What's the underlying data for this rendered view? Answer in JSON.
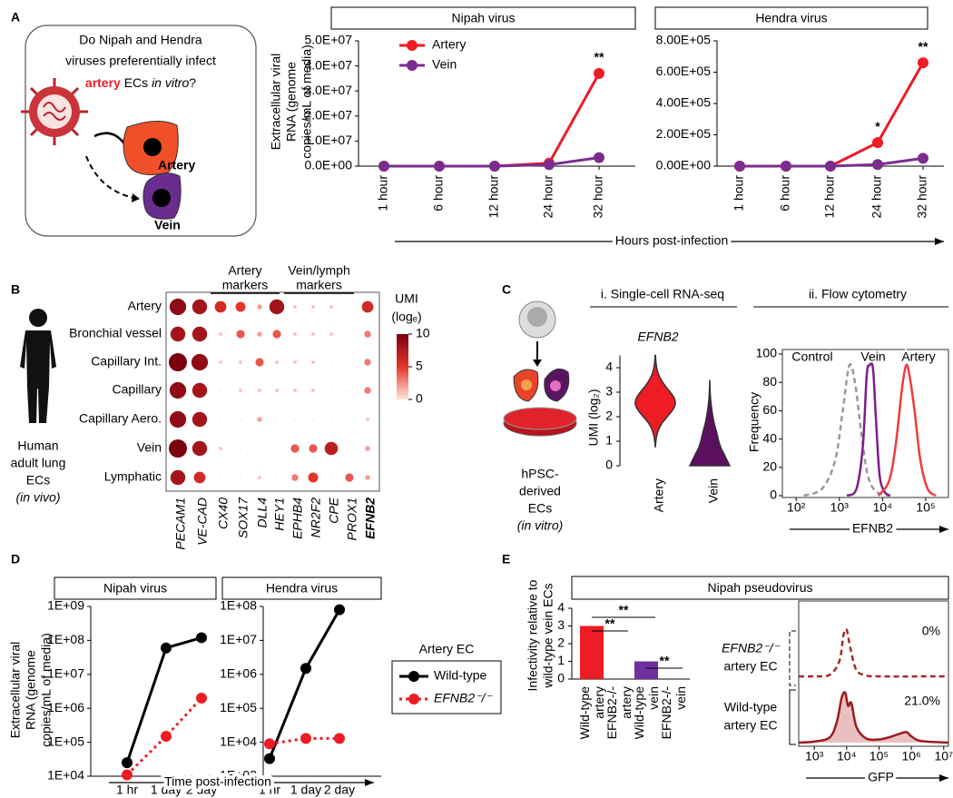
{
  "panels": [
    "A",
    "B",
    "C",
    "D",
    "E"
  ],
  "diagram_a": {
    "question_lines": [
      "Do Nipah and Hendra",
      "viruses preferentially infect"
    ],
    "question_last": [
      "artery",
      " ECs ",
      "in vitro",
      "?"
    ],
    "artery_label": "Artery",
    "vein_label": "Vein"
  },
  "diagram_b": {
    "label_lines": [
      "Human",
      "adult lung",
      "ECs",
      "(in vivo)"
    ]
  },
  "diagram_c": {
    "label_lines": [
      "hPSC-",
      "derived",
      "ECs",
      "(in vitro)"
    ]
  },
  "chart_data": [
    {
      "type": "line",
      "title": "Nipah virus",
      "ylabel_lines": [
        "Extracellular viral",
        "RNA (genome",
        "copies/mL of media)"
      ],
      "categories": [
        "1 hour",
        "6 hour",
        "12 hour",
        "24 hour",
        "32 hour"
      ],
      "series": [
        {
          "name": "Artery",
          "color": "#ee1c25",
          "values": [
            0,
            0,
            0,
            1200000,
            37000000
          ],
          "annotations": [
            null,
            null,
            null,
            null,
            "**"
          ]
        },
        {
          "name": "Vein",
          "color": "#7b2d8e",
          "values": [
            0,
            0,
            0,
            600000,
            3400000
          ]
        }
      ],
      "ylim": [
        0,
        50000000
      ],
      "yticks": [
        {
          "value": 0,
          "label": "0.0E+00"
        },
        {
          "value": 10000000,
          "label": "1.0E+07"
        },
        {
          "value": 20000000,
          "label": "2.0E+07"
        },
        {
          "value": 30000000,
          "label": "3.0E+07"
        },
        {
          "value": 40000000,
          "label": "4.0E+07"
        },
        {
          "value": 50000000,
          "label": "5.0E+07"
        }
      ],
      "legend": "upper left"
    },
    {
      "type": "line",
      "title": "Hendra virus",
      "xlabel": "Hours post-infection",
      "categories": [
        "1 hour",
        "6 hour",
        "12 hour",
        "24 hour",
        "32 hour"
      ],
      "series": [
        {
          "color": "#ee1c25",
          "values": [
            0,
            0,
            0,
            150000,
            660000
          ],
          "annotations": [
            null,
            null,
            null,
            "*",
            "**"
          ]
        },
        {
          "color": "#7b2d8e",
          "values": [
            0,
            0,
            0,
            10000,
            50000
          ]
        }
      ],
      "ylim": [
        0,
        800000
      ],
      "yticks": [
        {
          "value": 0,
          "label": "0.00E+00"
        },
        {
          "value": 200000,
          "label": "2.00E+05"
        },
        {
          "value": 400000,
          "label": "4.00E+05"
        },
        {
          "value": 600000,
          "label": "6.00E+05"
        },
        {
          "value": 800000,
          "label": "8.00E+05"
        }
      ]
    },
    {
      "type": "dot",
      "groups": [
        {
          "label_lines": [
            "Artery",
            "markers"
          ]
        },
        {
          "label_lines": [
            "Vein/lymph",
            "markers"
          ]
        }
      ],
      "rows": [
        "Artery",
        "Bronchial vessel",
        "Capillary Int.",
        "Capillary",
        "Capillary Aero.",
        "Vein",
        "Lymphatic"
      ],
      "columns": [
        "PECAM1",
        "VE-CAD",
        "CX40",
        "SOX17",
        "DLL4",
        "HEY1",
        "EPHB4",
        "NR2F2",
        "CPE",
        "PROX1",
        "EFNB2"
      ],
      "column_label_colors": [
        "#000000",
        "#000000",
        "#000000",
        "#000000",
        "#000000",
        "#000000",
        "#000000",
        "#000000",
        "#000000",
        "#000000",
        "#e31a1c"
      ],
      "values": [
        [
          9,
          8,
          6,
          5,
          2,
          8,
          1,
          1,
          1,
          0,
          6
        ],
        [
          8,
          8,
          1,
          4,
          2,
          4,
          1,
          1,
          1,
          0,
          3
        ],
        [
          10,
          9,
          1,
          1,
          4,
          1,
          1,
          1,
          0,
          0,
          3
        ],
        [
          9,
          8,
          0,
          1,
          1,
          1,
          1,
          1,
          0,
          0,
          3
        ],
        [
          9,
          8,
          0,
          0,
          2,
          0,
          0,
          0,
          0,
          0,
          1
        ],
        [
          10,
          8,
          1,
          0,
          0,
          0,
          4,
          4,
          7,
          0,
          2
        ],
        [
          8,
          6,
          0,
          0,
          1,
          0,
          3,
          5,
          0,
          4,
          2
        ]
      ],
      "colorbar_title_lines": [
        "UMI",
        "(logₑ)"
      ],
      "colormap": [
        "#fde6dc",
        "#e4352a",
        "#7a0010"
      ],
      "clim": [
        0,
        10
      ],
      "cticks": [
        0,
        5,
        10
      ]
    },
    {
      "type": "violin",
      "header": "i. Single-cell RNA-seq",
      "title": "EFNB2",
      "title_color": "#ee1c25",
      "ylabel": "UMI (log₂)",
      "ylim": [
        0,
        4.5
      ],
      "yticks": [
        0,
        1,
        2,
        3,
        4
      ],
      "y_grid": [
        0,
        0.25,
        0.5,
        0.75,
        1,
        1.25,
        1.5,
        1.75,
        2,
        2.25,
        2.5,
        2.75,
        3,
        3.25,
        3.5,
        3.75,
        4,
        4.25,
        4.5
      ],
      "series": [
        {
          "name": "Artery",
          "color": "#ee1c25",
          "density": [
            0,
            0,
            0,
            0,
            0.03,
            0.08,
            0.18,
            0.35,
            0.6,
            0.85,
            1,
            0.95,
            0.75,
            0.5,
            0.3,
            0.15,
            0.07,
            0.03,
            0.01
          ]
        },
        {
          "name": "Vein",
          "color": "#5b0f5f",
          "density": [
            1,
            0.85,
            0.7,
            0.55,
            0.45,
            0.38,
            0.3,
            0.22,
            0.16,
            0.11,
            0.07,
            0.04,
            0.02,
            0.01,
            0,
            0,
            0,
            0,
            0
          ]
        }
      ]
    },
    {
      "type": "density",
      "header": "ii. Flow cytometry",
      "ylabel": "Frequency",
      "xlabel": "EFNB2",
      "xlabel_color": "#ee1c25",
      "log_x": true,
      "xlim": [
        48,
        335000
      ],
      "xticks": [
        {
          "value": 100,
          "label": "10²"
        },
        {
          "value": 1000,
          "label": "10³"
        },
        {
          "value": 10000,
          "label": "10⁴"
        },
        {
          "value": 100000,
          "label": "10⁵"
        }
      ],
      "ylim": [
        0,
        100
      ],
      "yticks": [
        0,
        20,
        40,
        60,
        80,
        100
      ],
      "series": [
        {
          "name": "Control",
          "color": "#999999",
          "style": "dashed",
          "x": [
            150,
            400,
            800,
            1200,
            1700,
            2300,
            3200,
            4500,
            7000,
            15000
          ],
          "y": [
            0,
            5,
            25,
            60,
            92,
            80,
            45,
            15,
            3,
            0
          ]
        },
        {
          "name": "Vein",
          "color": "#7b1f8a",
          "x": [
            1500,
            2500,
            3500,
            4300,
            5000,
            6000,
            7000,
            8500,
            11000,
            15000
          ],
          "y": [
            0,
            5,
            35,
            85,
            92,
            90,
            55,
            15,
            3,
            0
          ]
        },
        {
          "name": "Artery",
          "color": "#f03c3c",
          "x": [
            8000,
            14000,
            20000,
            28000,
            35000,
            42000,
            55000,
            75000,
            110000,
            170000
          ],
          "y": [
            0,
            10,
            35,
            75,
            92,
            85,
            60,
            25,
            5,
            0
          ]
        }
      ]
    },
    {
      "type": "line",
      "log_y": true,
      "title": "Nipah virus",
      "ylabel_lines": [
        "Extracellular viral",
        "RNA (genome",
        "copies/mL of media)"
      ],
      "categories": [
        "1 hr",
        "1 day",
        "2 day"
      ],
      "series": [
        {
          "color": "#000000",
          "values": [
            25000,
            60000000,
            120000000
          ]
        },
        {
          "color": "#ee1c25",
          "style": "dotted",
          "values": [
            11000,
            150000,
            2000000
          ]
        }
      ],
      "ylim": [
        10000,
        1000000000
      ],
      "yticks": [
        {
          "value": 10000,
          "label": "1E+04"
        },
        {
          "value": 100000,
          "label": "1E+05"
        },
        {
          "value": 1000000,
          "label": "1E+06"
        },
        {
          "value": 10000000,
          "label": "1E+07"
        },
        {
          "value": 100000000,
          "label": "1E+08"
        },
        {
          "value": 1000000000,
          "label": "1E+09"
        }
      ]
    },
    {
      "type": "line",
      "log_y": true,
      "title": "Hendra virus",
      "xlabel": "Time post-infection",
      "legend_title": "Artery EC",
      "legend": "right",
      "categories": [
        "1 hr",
        "1 day",
        "2 day"
      ],
      "series": [
        {
          "name": "Wild-type",
          "color": "#000000",
          "values": [
            3300,
            1500000,
            80000000
          ]
        },
        {
          "name": "EFNB2⁻/⁻",
          "color": "#ee1c25",
          "style": "dotted",
          "values": [
            9000,
            13000,
            13000
          ]
        }
      ],
      "ylim": [
        1000,
        100000000
      ],
      "yticks": [
        {
          "value": 1000,
          "label": "1E+03"
        },
        {
          "value": 10000,
          "label": "1E+04"
        },
        {
          "value": 100000,
          "label": "1E+05"
        },
        {
          "value": 1000000,
          "label": "1E+06"
        },
        {
          "value": 10000000,
          "label": "1E+07"
        },
        {
          "value": 100000000,
          "label": "1E+08"
        }
      ]
    },
    {
      "type": "bar",
      "title": "Nipah pseudovirus",
      "ylabel_lines": [
        "Infectivity relative to",
        "wild-type vein ECs"
      ],
      "categories": [
        "Wild-type artery",
        "EFNB2-/- artery",
        "Wild-type vein",
        "EFNB2-/- vein"
      ],
      "values": [
        3,
        0,
        1,
        0
      ],
      "colors": [
        "#ee1c25",
        "#ee1c25",
        "#7030a0",
        "#7030a0"
      ],
      "ylim": [
        0,
        4
      ],
      "yticks": [
        0,
        1,
        2,
        3,
        4
      ],
      "significance": [
        "**",
        "**",
        "**"
      ]
    },
    {
      "type": "density",
      "xlabel": "GFP",
      "log_x": true,
      "xlim": [
        330,
        14000000
      ],
      "xticks": [
        {
          "value": 1000,
          "label": "10³"
        },
        {
          "value": 10000,
          "label": "10⁴"
        },
        {
          "value": 100000,
          "label": "10⁵"
        },
        {
          "value": 1000000,
          "label": "10⁶"
        },
        {
          "value": 10000000,
          "label": "10⁷"
        }
      ],
      "ylim": [
        0,
        100
      ],
      "series": [
        {
          "name_lines": [
            "EFNB2⁻/⁻",
            "artery EC"
          ],
          "color": "#a52a2a",
          "style": "dashed",
          "x": [
            330,
            1000,
            3000,
            6000,
            8000,
            10000,
            13000,
            20000,
            40000,
            100000,
            14000000
          ],
          "y": [
            0,
            0,
            3,
            30,
            80,
            90,
            55,
            12,
            2,
            0,
            0
          ],
          "gated_percent": 0,
          "gated_percent_label": "0%",
          "label_color": "#000000"
        },
        {
          "name_lines": [
            "Wild-type",
            "artery EC"
          ],
          "color": "#9b1c1c",
          "fill": "#e9c0c0",
          "x": [
            330,
            1000,
            3000,
            5000,
            7000,
            9000,
            11000,
            14000,
            20000,
            40000,
            100000,
            200000,
            400000,
            700000,
            1000000,
            2000000,
            14000000
          ],
          "y": [
            0,
            2,
            10,
            40,
            85,
            95,
            70,
            75,
            30,
            8,
            6,
            10,
            16,
            20,
            12,
            3,
            0
          ],
          "gated_percent": 21.0,
          "gated_percent_label": "21.0%",
          "label_color": "#e31a1c"
        }
      ]
    }
  ]
}
